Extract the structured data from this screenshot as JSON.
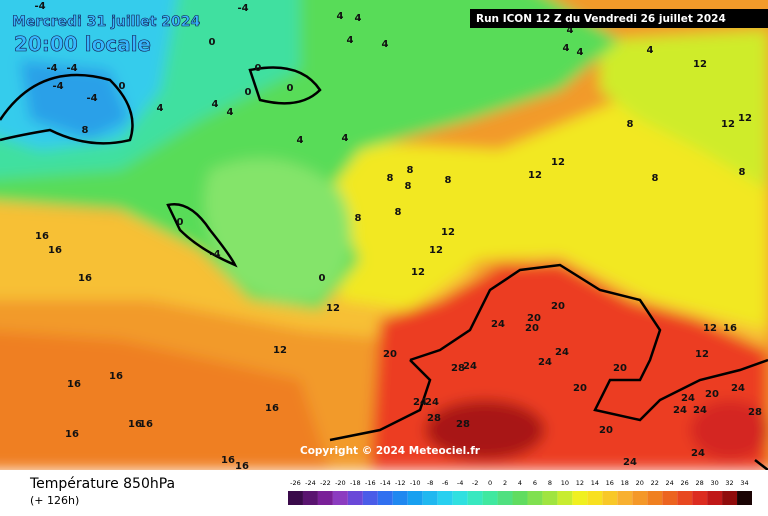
{
  "header": {
    "date": "Mercredi 31 juillet 2024",
    "time": "20:00 locale",
    "run": "Run ICON 12 Z du Vendredi 26 juillet 2024"
  },
  "copyright": "Copyright © 2024 Meteociel.fr",
  "footer": {
    "title": "Température 850hPa",
    "lead": "(+ 126h)"
  },
  "legend": {
    "ticks": [
      -26,
      -24,
      -22,
      -20,
      -18,
      -16,
      -14,
      -12,
      -10,
      -8,
      -6,
      -4,
      -2,
      0,
      2,
      4,
      6,
      8,
      10,
      12,
      14,
      16,
      18,
      20,
      22,
      24,
      26,
      28,
      30,
      32,
      34
    ],
    "colors": [
      "#3a0a4a",
      "#5a1470",
      "#7a2098",
      "#8c3cc0",
      "#6a48d8",
      "#4a5ce8",
      "#3070f0",
      "#2088f0",
      "#18a0f0",
      "#20b8f0",
      "#28d0f0",
      "#30e0e0",
      "#38e8c0",
      "#40e8a0",
      "#50e080",
      "#60dc60",
      "#80e050",
      "#a0e440",
      "#c8ec30",
      "#f0f020",
      "#f8e020",
      "#f8c828",
      "#f8b030",
      "#f49828",
      "#f08020",
      "#ec6420",
      "#e84820",
      "#dc2c20",
      "#c01818",
      "#900c0c",
      "#1a0404"
    ]
  },
  "map": {
    "contour_labels": [
      -4,
      -4,
      4,
      4,
      4,
      4,
      4,
      4,
      4,
      4,
      4,
      4,
      4,
      4,
      4,
      0,
      0,
      0,
      0,
      0,
      0,
      0,
      -4,
      -4,
      -4,
      -4,
      -4,
      8,
      8,
      8,
      8,
      8,
      8,
      8,
      8,
      8,
      8,
      12,
      12,
      12,
      12,
      12,
      12,
      12,
      12,
      12,
      12,
      12,
      12,
      16,
      16,
      16,
      16,
      16,
      16,
      16,
      16,
      16,
      16,
      16,
      16,
      20,
      20,
      20,
      20,
      20,
      20,
      20,
      20,
      24,
      24,
      24,
      24,
      24,
      24,
      24,
      24,
      24,
      24,
      24,
      24,
      28,
      28,
      28,
      28
    ]
  }
}
